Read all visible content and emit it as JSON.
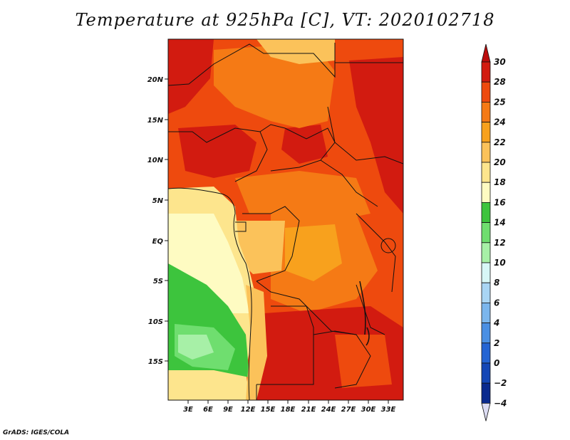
{
  "title": "Temperature at 925hPa [C], VT: 2020102718",
  "credit": "GrADS: IGES/COLA",
  "map": {
    "lat_ticks": [
      "20N",
      "15N",
      "10N",
      "5N",
      "EQ",
      "5S",
      "10S",
      "15S"
    ],
    "lon_ticks": [
      "3E",
      "6E",
      "9E",
      "12E",
      "15E",
      "18E",
      "21E",
      "24E",
      "27E",
      "30E",
      "33E"
    ]
  },
  "colorbar": {
    "levels": [
      "30",
      "28",
      "25",
      "24",
      "22",
      "20",
      "18",
      "16",
      "14",
      "12",
      "10",
      "8",
      "6",
      "4",
      "2",
      "0",
      "−2",
      "−4"
    ],
    "colors": [
      "#d21b10",
      "#ee4a0e",
      "#f57a15",
      "#f8a11d",
      "#fbc25a",
      "#fde58d",
      "#fefbc2",
      "#3dc43d",
      "#6fde6f",
      "#a7f0a7",
      "#d7f7f7",
      "#a9d5f4",
      "#7bb6ed",
      "#4a8fe3",
      "#2464d3",
      "#1447b6",
      "#0a2a8e",
      "#06125f"
    ],
    "top_triangle_color": "#bb0c0c",
    "bottom_triangle_color": "#dcdcf3"
  }
}
